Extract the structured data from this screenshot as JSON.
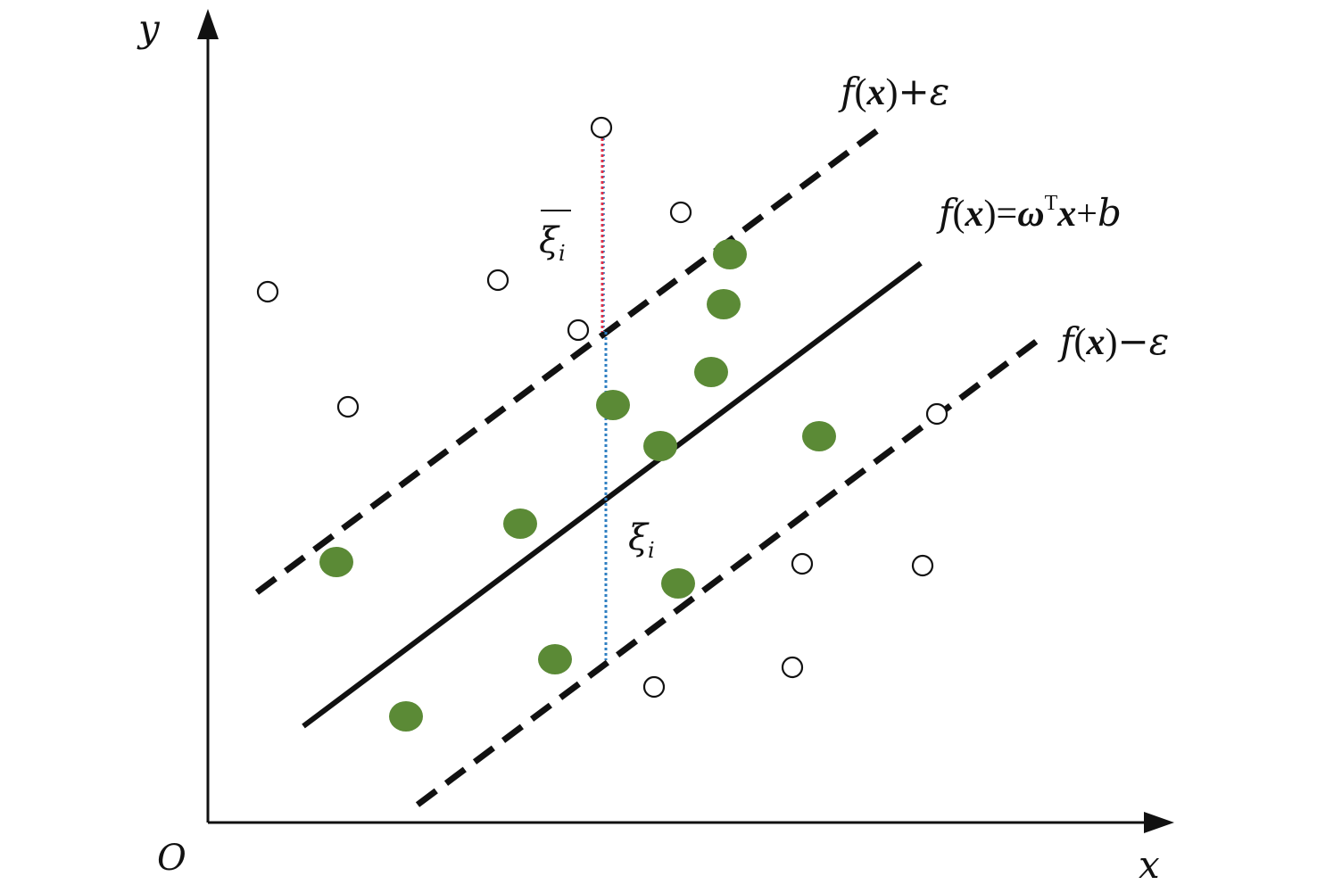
{
  "axes": {
    "x_label": "x",
    "y_label": "y",
    "origin_label": "O"
  },
  "lines": {
    "upper": {
      "label_f": "f",
      "label_paren_open": "(",
      "label_var": "x",
      "label_paren_close": ")",
      "label_suffix": "+ε"
    },
    "middle": {
      "label_f": "f",
      "label_paren_open": "(",
      "label_var": "x",
      "label_paren_close": ")",
      "label_eq": "=",
      "label_omega": "ω",
      "label_sup": "T",
      "label_var2": "x",
      "label_plus": "+",
      "label_b": "b"
    },
    "lower": {
      "label_f": "f",
      "label_paren_open": "(",
      "label_var": "x",
      "label_paren_close": ")",
      "label_suffix": "−ε"
    }
  },
  "slacks": {
    "xi_bar_symbol": "ξ",
    "xi_bar_sub": "i",
    "xi_symbol": "ξ",
    "xi_sub": "i"
  },
  "colors": {
    "inside_point": "#5b8a36",
    "slack_upper": "#e0304a",
    "slack_lower": "#2f7fc2",
    "ink": "#111111"
  }
}
